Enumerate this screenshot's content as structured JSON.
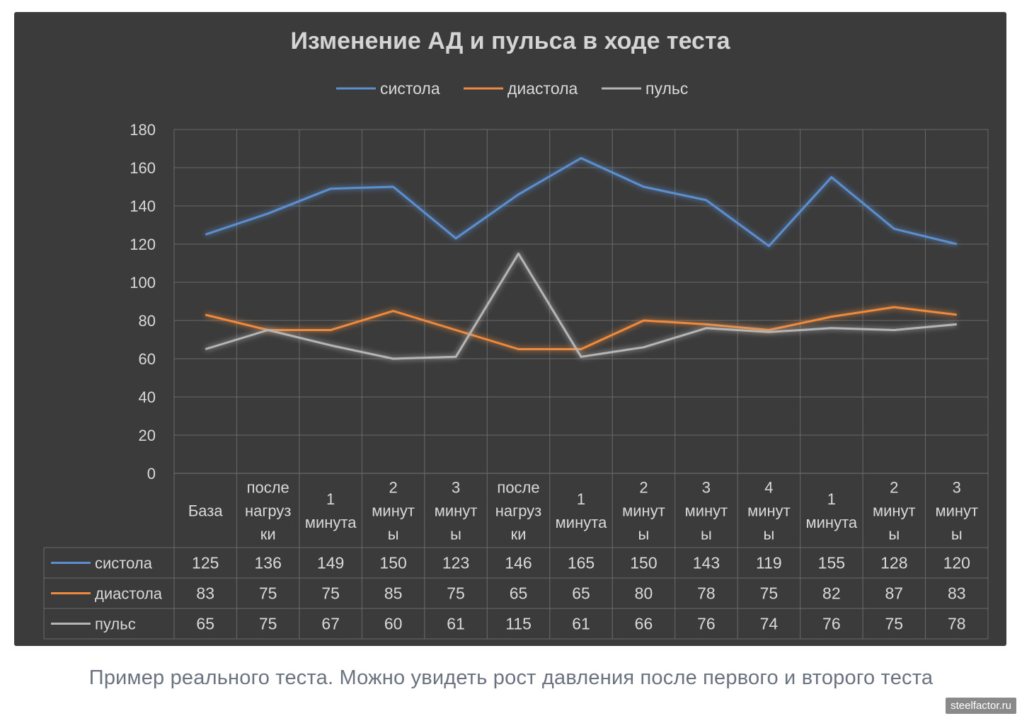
{
  "chart_data": {
    "type": "line",
    "title": "Изменение АД и пульса в ходе теста",
    "categories": [
      [
        "База"
      ],
      [
        "после",
        "нагруз",
        "ки"
      ],
      [
        "1",
        "минута"
      ],
      [
        "2",
        "минут",
        "ы"
      ],
      [
        "3",
        "минут",
        "ы"
      ],
      [
        "после",
        "нагруз",
        "ки"
      ],
      [
        "1",
        "минута"
      ],
      [
        "2",
        "минут",
        "ы"
      ],
      [
        "3",
        "минут",
        "ы"
      ],
      [
        "4",
        "минут",
        "ы"
      ],
      [
        "1",
        "минута"
      ],
      [
        "2",
        "минут",
        "ы"
      ],
      [
        "3",
        "минут",
        "ы"
      ]
    ],
    "series": [
      {
        "name": "систола",
        "color": "#5b8fd0",
        "values": [
          125,
          136,
          149,
          150,
          123,
          146,
          165,
          150,
          143,
          119,
          155,
          128,
          120
        ]
      },
      {
        "name": "диастола",
        "color": "#ed8a3e",
        "values": [
          83,
          75,
          75,
          85,
          75,
          65,
          65,
          80,
          78,
          75,
          82,
          87,
          83
        ]
      },
      {
        "name": "пульс",
        "color": "#b5b5b5",
        "values": [
          65,
          75,
          67,
          60,
          61,
          115,
          61,
          66,
          76,
          74,
          76,
          75,
          78
        ]
      }
    ],
    "ylim": [
      0,
      180
    ],
    "yticks": [
      0,
      20,
      40,
      60,
      80,
      100,
      120,
      140,
      160,
      180
    ],
    "grid": true,
    "legend": "top-center",
    "data_table": true
  },
  "caption": "Пример реального теста. Можно увидеть рост давления после первого и второго теста",
  "watermark": "steelfactor.ru"
}
